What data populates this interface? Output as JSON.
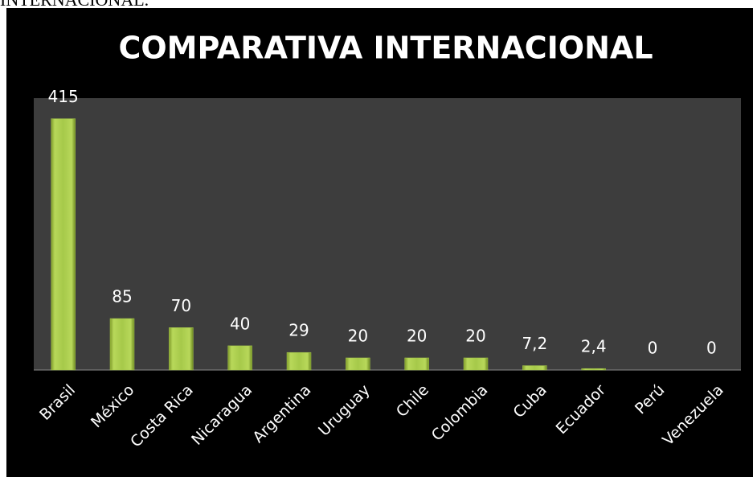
{
  "document_text": "INTERNACIONAL.",
  "chart_data": {
    "type": "bar",
    "title": "COMPARATIVA INTERNACIONAL",
    "categories": [
      "Brasil",
      "México",
      "Costa Rica",
      "Nicaragua",
      "Argentina",
      "Uruguay",
      "Chile",
      "Colombia",
      "Cuba",
      "Ecuador",
      "Perú",
      "Venezuela"
    ],
    "values": [
      415,
      85,
      70,
      40,
      29,
      20,
      20,
      20,
      7.2,
      2.4,
      0,
      0
    ],
    "value_labels": [
      "415",
      "85",
      "70",
      "40",
      "29",
      "20",
      "20",
      "20",
      "7,2",
      "2,4",
      "0",
      "0"
    ],
    "color": "#a6c94a",
    "ylim": [
      0,
      449
    ]
  }
}
